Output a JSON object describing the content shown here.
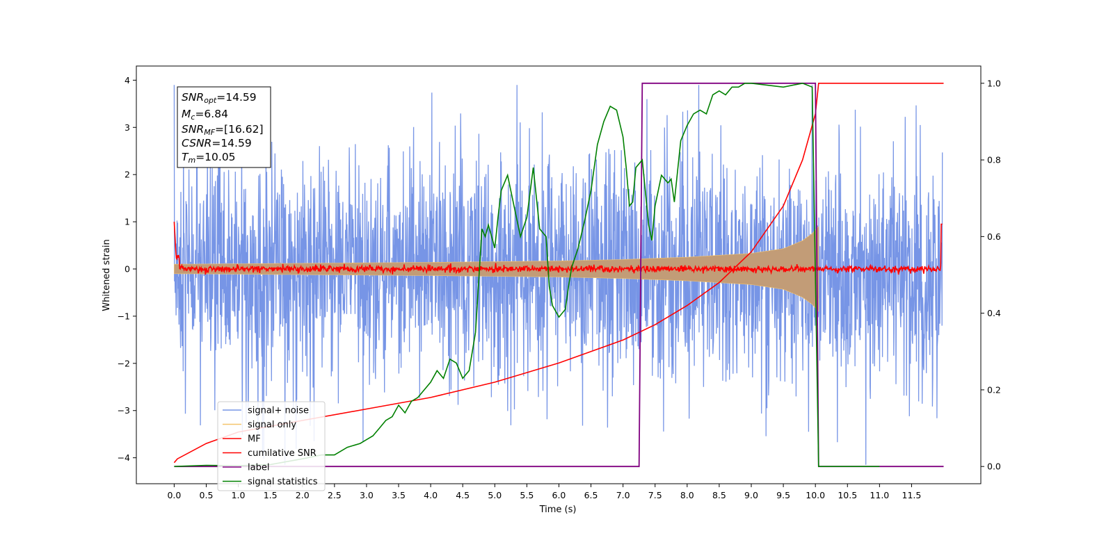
{
  "chart_data": {
    "type": "line",
    "title": "",
    "xlabel": "Time (s)",
    "ylabel": "Whitened strain",
    "ylabel_right": "",
    "xlim": [
      -0.59,
      12.58
    ],
    "ylim": [
      -4.55,
      4.3
    ],
    "ylim_right": [
      -0.045,
      1.045
    ],
    "x_ticks": [
      "0.0",
      "0.5",
      "1.0",
      "1.5",
      "2.0",
      "2.5",
      "3.0",
      "3.5",
      "4.0",
      "4.5",
      "5.0",
      "5.5",
      "6.0",
      "6.5",
      "7.0",
      "7.5",
      "8.0",
      "8.5",
      "9.0",
      "9.5",
      "10.0",
      "10.5",
      "11.0",
      "11.5"
    ],
    "y_ticks_left": [
      "4",
      "3",
      "2",
      "1",
      "0",
      "−1",
      "−2",
      "−3",
      "−4"
    ],
    "y_ticks_right": [
      "1.0",
      "0.8",
      "0.6",
      "0.4",
      "0.2",
      "0.0"
    ],
    "grid": false,
    "legend_position": "lower-left",
    "colors": {
      "signal_noise": "#7795e6",
      "signal_only": "#f5c46b",
      "signal_only_fill": "#c29c77",
      "mf": "#ff0000",
      "cumulative_snr": "#ff0000",
      "label": "#800080",
      "signal_statistics": "#008000"
    },
    "stats_box": {
      "snr_opt": {
        "base": "SNR",
        "sub": "opt",
        "value": "=14.59"
      },
      "mc": {
        "base": "M",
        "sub": "c",
        "value": "=6.84"
      },
      "snr_mf": {
        "base": "SNR",
        "sub": "MF",
        "value": "=[16.62]"
      },
      "csnr": {
        "base": "CSNR",
        "value": "=14.59"
      },
      "tm": {
        "base": "T",
        "sub": "m",
        "value": "=10.05"
      }
    },
    "series": [
      {
        "name": "signal+ noise",
        "axis": "left",
        "description_points": "dense noise, amplitude ~±2.5 with spikes to ~±3.9, t=0 to 12"
      },
      {
        "name": "signal only",
        "axis": "left",
        "envelope": {
          "x": [
            0,
            2,
            4,
            6,
            7,
            8,
            9,
            9.5,
            9.8,
            9.95,
            10.05
          ],
          "y": [
            0.1,
            0.12,
            0.14,
            0.17,
            0.2,
            0.25,
            0.33,
            0.43,
            0.6,
            0.75,
            0.9
          ]
        }
      },
      {
        "name": "MF",
        "axis": "left",
        "description_points": "near zero, jitter ±0.1, spikes to 1.0 at t=0 and t=12"
      },
      {
        "name": "cumilative SNR",
        "axis": "right",
        "x": [
          0.0,
          0.05,
          0.5,
          1.0,
          2.0,
          3.0,
          4.0,
          5.0,
          6.0,
          7.0,
          7.5,
          8.0,
          8.5,
          9.0,
          9.5,
          9.8,
          10.0,
          10.05,
          12.0
        ],
        "y": [
          0.01,
          0.02,
          0.06,
          0.09,
          0.12,
          0.15,
          0.18,
          0.22,
          0.27,
          0.33,
          0.37,
          0.42,
          0.48,
          0.56,
          0.68,
          0.8,
          0.92,
          1.0,
          1.0
        ]
      },
      {
        "name": "label",
        "axis": "right",
        "x": [
          0.0,
          7.25,
          7.3,
          10.0,
          10.05,
          10.08,
          12.0
        ],
        "y": [
          0.0,
          0.0,
          1.0,
          1.0,
          0.0,
          0.0,
          0.0
        ]
      },
      {
        "name": "signal statistics",
        "axis": "right",
        "x": [
          0.0,
          0.5,
          1.0,
          1.5,
          2.0,
          2.3,
          2.5,
          2.7,
          2.9,
          3.0,
          3.1,
          3.2,
          3.3,
          3.4,
          3.5,
          3.6,
          3.7,
          3.8,
          3.9,
          4.0,
          4.1,
          4.2,
          4.3,
          4.4,
          4.5,
          4.6,
          4.7,
          4.8,
          4.85,
          4.9,
          5.0,
          5.05,
          5.1,
          5.2,
          5.3,
          5.4,
          5.5,
          5.6,
          5.7,
          5.8,
          5.85,
          5.9,
          6.0,
          6.1,
          6.15,
          6.2,
          6.3,
          6.4,
          6.5,
          6.6,
          6.7,
          6.8,
          6.9,
          7.0,
          7.05,
          7.1,
          7.15,
          7.2,
          7.3,
          7.4,
          7.45,
          7.5,
          7.6,
          7.7,
          7.75,
          7.8,
          7.9,
          8.0,
          8.1,
          8.2,
          8.3,
          8.4,
          8.5,
          8.6,
          8.7,
          8.8,
          8.9,
          9.0,
          9.5,
          9.8,
          9.95,
          10.05,
          10.1,
          11.0
        ],
        "y": [
          0.0,
          0.003,
          0.002,
          0.005,
          0.02,
          0.03,
          0.03,
          0.05,
          0.06,
          0.07,
          0.08,
          0.1,
          0.12,
          0.13,
          0.16,
          0.14,
          0.17,
          0.18,
          0.2,
          0.22,
          0.25,
          0.23,
          0.28,
          0.27,
          0.23,
          0.25,
          0.35,
          0.62,
          0.6,
          0.63,
          0.57,
          0.65,
          0.72,
          0.76,
          0.68,
          0.6,
          0.65,
          0.78,
          0.62,
          0.6,
          0.47,
          0.42,
          0.39,
          0.41,
          0.47,
          0.52,
          0.57,
          0.64,
          0.72,
          0.84,
          0.9,
          0.94,
          0.93,
          0.86,
          0.78,
          0.68,
          0.69,
          0.78,
          0.8,
          0.63,
          0.59,
          0.68,
          0.76,
          0.74,
          0.75,
          0.69,
          0.85,
          0.89,
          0.92,
          0.93,
          0.92,
          0.97,
          0.98,
          0.97,
          0.99,
          0.99,
          1.0,
          1.0,
          0.99,
          1.0,
          0.99,
          0.0,
          0.0,
          0.0
        ]
      }
    ]
  }
}
